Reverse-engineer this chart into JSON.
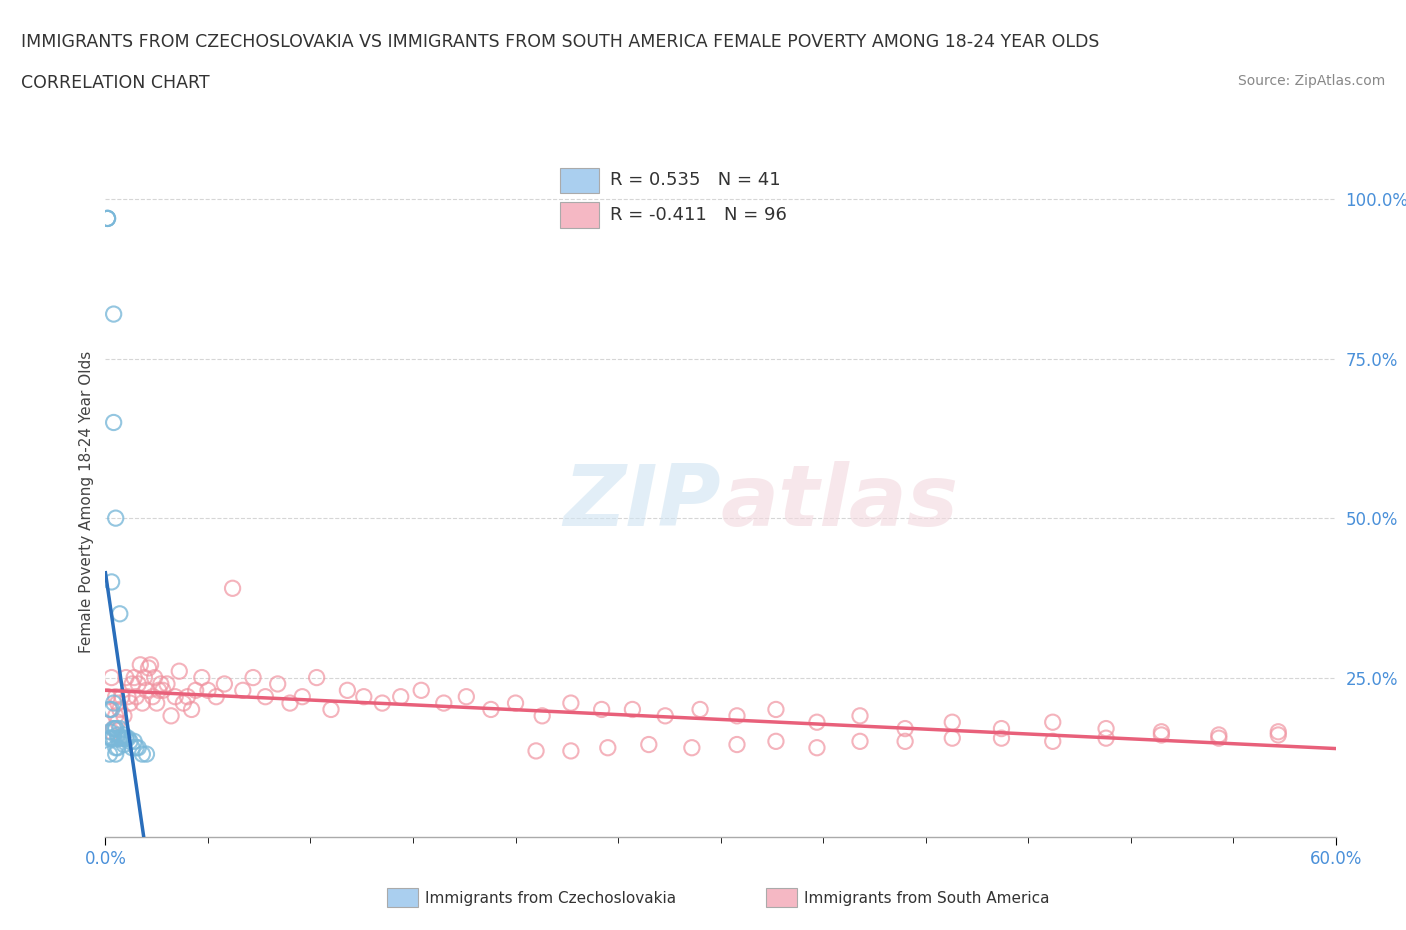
{
  "title_line1": "IMMIGRANTS FROM CZECHOSLOVAKIA VS IMMIGRANTS FROM SOUTH AMERICA FEMALE POVERTY AMONG 18-24 YEAR OLDS",
  "title_line2": "CORRELATION CHART",
  "source": "Source: ZipAtlas.com",
  "ylabel": "Female Poverty Among 18-24 Year Olds",
  "ytick_values": [
    1.0,
    0.75,
    0.5,
    0.25
  ],
  "ytick_labels": [
    "100.0%",
    "75.0%",
    "50.0%",
    "25.0%"
  ],
  "legend1_label": "R = 0.535   N = 41",
  "legend2_label": "R = -0.411   N = 96",
  "legend1_color": "#aacfef",
  "legend2_color": "#f5b8c4",
  "blue_scatter_color": "#7ab8d9",
  "pink_scatter_color": "#f093a0",
  "blue_line_color": "#2a6ebb",
  "pink_line_color": "#e8607a",
  "watermark_top": "ZIP",
  "watermark_bot": "atlas",
  "xmin": 0.0,
  "xmax": 0.6,
  "ymin": 0.0,
  "ymax": 1.05,
  "blue_scatter_x": [
    0.001,
    0.001,
    0.001,
    0.002,
    0.002,
    0.002,
    0.002,
    0.003,
    0.003,
    0.003,
    0.003,
    0.004,
    0.004,
    0.004,
    0.004,
    0.004,
    0.005,
    0.005,
    0.005,
    0.005,
    0.005,
    0.006,
    0.006,
    0.006,
    0.007,
    0.007,
    0.007,
    0.008,
    0.008,
    0.009,
    0.009,
    0.01,
    0.01,
    0.011,
    0.012,
    0.013,
    0.014,
    0.015,
    0.016,
    0.018,
    0.02
  ],
  "blue_scatter_y": [
    0.97,
    0.97,
    0.97,
    0.155,
    0.13,
    0.2,
    0.165,
    0.155,
    0.4,
    0.155,
    0.2,
    0.17,
    0.21,
    0.65,
    0.155,
    0.82,
    0.17,
    0.5,
    0.13,
    0.14,
    0.17,
    0.16,
    0.155,
    0.14,
    0.17,
    0.155,
    0.35,
    0.155,
    0.155,
    0.16,
    0.145,
    0.155,
    0.155,
    0.155,
    0.15,
    0.14,
    0.15,
    0.14,
    0.14,
    0.13,
    0.13
  ],
  "pink_scatter_x": [
    0.001,
    0.002,
    0.003,
    0.003,
    0.004,
    0.005,
    0.005,
    0.006,
    0.006,
    0.007,
    0.008,
    0.009,
    0.01,
    0.011,
    0.012,
    0.013,
    0.014,
    0.015,
    0.016,
    0.017,
    0.018,
    0.019,
    0.02,
    0.021,
    0.022,
    0.023,
    0.024,
    0.025,
    0.026,
    0.027,
    0.028,
    0.03,
    0.032,
    0.034,
    0.036,
    0.038,
    0.04,
    0.042,
    0.044,
    0.047,
    0.05,
    0.054,
    0.058,
    0.062,
    0.067,
    0.072,
    0.078,
    0.084,
    0.09,
    0.096,
    0.103,
    0.11,
    0.118,
    0.126,
    0.135,
    0.144,
    0.154,
    0.165,
    0.176,
    0.188,
    0.2,
    0.213,
    0.227,
    0.242,
    0.257,
    0.273,
    0.29,
    0.308,
    0.327,
    0.347,
    0.368,
    0.39,
    0.413,
    0.437,
    0.462,
    0.488,
    0.515,
    0.543,
    0.572,
    0.572,
    0.543,
    0.515,
    0.488,
    0.462,
    0.437,
    0.413,
    0.39,
    0.368,
    0.347,
    0.327,
    0.308,
    0.286,
    0.265,
    0.245,
    0.227,
    0.21
  ],
  "pink_scatter_y": [
    0.22,
    0.2,
    0.25,
    0.165,
    0.17,
    0.19,
    0.22,
    0.21,
    0.18,
    0.2,
    0.22,
    0.19,
    0.25,
    0.22,
    0.21,
    0.24,
    0.25,
    0.22,
    0.24,
    0.27,
    0.21,
    0.25,
    0.23,
    0.265,
    0.27,
    0.22,
    0.25,
    0.21,
    0.23,
    0.24,
    0.23,
    0.24,
    0.19,
    0.22,
    0.26,
    0.21,
    0.22,
    0.2,
    0.23,
    0.25,
    0.23,
    0.22,
    0.24,
    0.39,
    0.23,
    0.25,
    0.22,
    0.24,
    0.21,
    0.22,
    0.25,
    0.2,
    0.23,
    0.22,
    0.21,
    0.22,
    0.23,
    0.21,
    0.22,
    0.2,
    0.21,
    0.19,
    0.21,
    0.2,
    0.2,
    0.19,
    0.2,
    0.19,
    0.2,
    0.18,
    0.19,
    0.17,
    0.18,
    0.17,
    0.18,
    0.17,
    0.165,
    0.16,
    0.165,
    0.16,
    0.155,
    0.16,
    0.155,
    0.15,
    0.155,
    0.155,
    0.15,
    0.15,
    0.14,
    0.15,
    0.145,
    0.14,
    0.145,
    0.14,
    0.135,
    0.135
  ]
}
